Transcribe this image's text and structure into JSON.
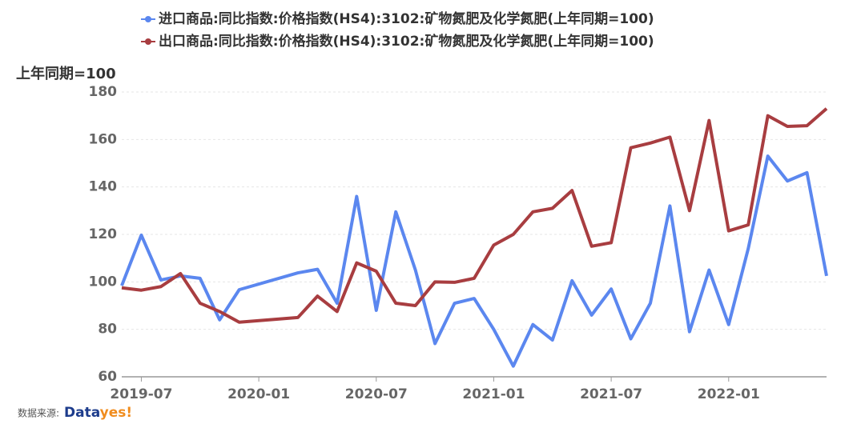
{
  "chart_data": {
    "type": "line",
    "y_axis_label": "上年同期=100",
    "x": [
      "2019-06",
      "2019-07",
      "2019-08",
      "2019-09",
      "2019-10",
      "2019-11",
      "2019-12",
      "2020-03",
      "2020-04",
      "2020-05",
      "2020-06",
      "2020-07",
      "2020-08",
      "2020-09",
      "2020-10",
      "2020-11",
      "2020-12",
      "2021-01",
      "2021-02",
      "2021-03",
      "2021-04",
      "2021-05",
      "2021-06",
      "2021-07",
      "2021-08",
      "2021-09",
      "2021-10",
      "2021-11",
      "2021-12",
      "2022-01",
      "2022-02",
      "2022-03",
      "2022-04",
      "2022-05",
      "2022-06"
    ],
    "series": [
      {
        "name": "进口商品:同比指数:价格指数(HS4):3102:矿物氮肥及化学氮肥(上年同期=100)",
        "color": "#5b87ef",
        "values": [
          98.4,
          119.7,
          100.8,
          102.5,
          101.5,
          84,
          96.7,
          103.8,
          105.3,
          91,
          136,
          88,
          129.5,
          105,
          74,
          91,
          93,
          80,
          64.5,
          82,
          75.5,
          100.5,
          86,
          97,
          76,
          91,
          132,
          79,
          105,
          82,
          114,
          153,
          142.5,
          146,
          102.5
        ]
      },
      {
        "name": "出口商品:同比指数:价格指数(HS4):3102:矿物氮肥及化学氮肥(上年同期=100)",
        "color": "#a83d40",
        "values": [
          97.5,
          96.5,
          98,
          103.5,
          91,
          87.5,
          83,
          85,
          94,
          87.5,
          108,
          104.5,
          91,
          90,
          100,
          99.8,
          101.5,
          115.5,
          120,
          129.5,
          131,
          138.5,
          115,
          116.5,
          156.5,
          158.5,
          161,
          130,
          168,
          121.5,
          124,
          170,
          165.5,
          165.8,
          173
        ]
      }
    ],
    "xlim": [
      "2019-06",
      "2022-06"
    ],
    "xticks": [
      "2019-07",
      "2020-01",
      "2020-07",
      "2021-01",
      "2021-07",
      "2022-01"
    ],
    "ylim": [
      60,
      180
    ],
    "yticks": [
      60,
      80,
      100,
      120,
      140,
      160,
      180
    ],
    "grid": true,
    "source": "数据来源:",
    "brand": [
      "Data",
      "yes!"
    ]
  }
}
